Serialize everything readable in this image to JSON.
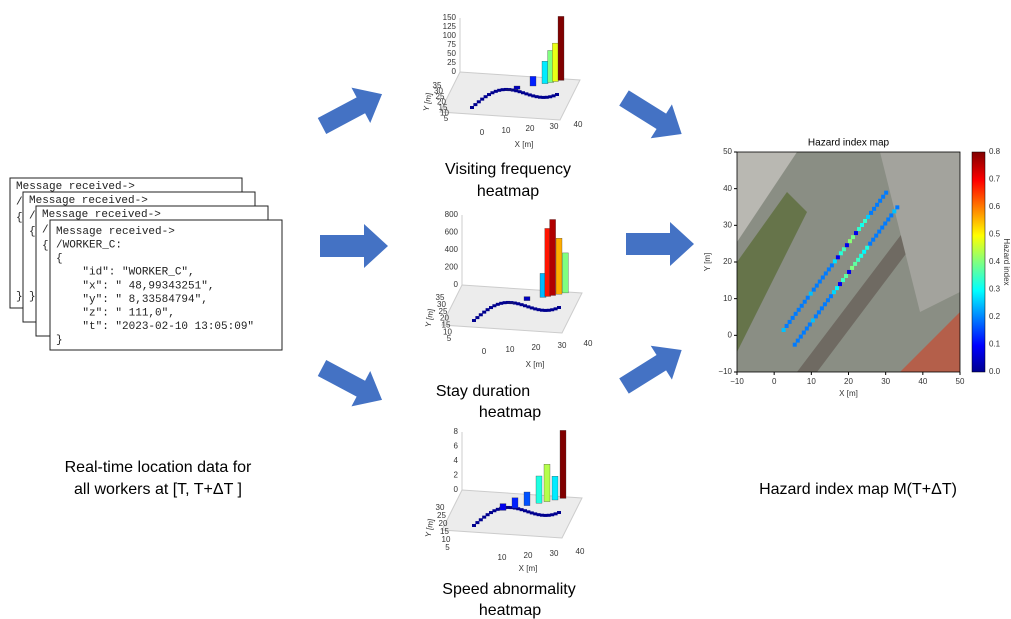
{
  "message_cards": {
    "back": [
      [
        "Message received->",
        "/",
        "{",
        "}"
      ],
      [
        "Message received->",
        "/",
        "{",
        "}"
      ],
      [
        "Message received->",
        "/",
        "{"
      ]
    ],
    "front": [
      "Message received->",
      "/WORKER_C:",
      "{",
      "    \"id\": \"WORKER_C\",",
      "    \"x\": \" 48,99343251\",",
      "    \"y\": \" 8,33584794\",",
      "    \"z\": \" 111,0\",",
      "    \"t\": \"2023-02-10 13:05:09\"",
      "}"
    ]
  },
  "heatmaps": [
    {
      "caption": [
        "Visiting frequency",
        "heatmap"
      ],
      "z_ticks": [
        "150",
        "125",
        "100",
        "75",
        "50",
        "25",
        "0"
      ],
      "y_ticks": [
        "35",
        "30",
        "25",
        "20",
        "15",
        "10",
        "5"
      ],
      "x_ticks": [
        "0",
        "10",
        "20",
        "30",
        "40"
      ],
      "x_label": "X [m]",
      "y_label": "Y [m]"
    },
    {
      "caption": [
        "Stay duration",
        "heatmap"
      ],
      "z_ticks": [
        "800",
        "600",
        "400",
        "200",
        "0"
      ],
      "y_ticks": [
        "35",
        "30",
        "25",
        "20",
        "15",
        "10",
        "5"
      ],
      "x_ticks": [
        "0",
        "10",
        "20",
        "30",
        "40"
      ],
      "x_label": "X [m]",
      "y_label": "Y [m]"
    },
    {
      "caption": [
        "Speed abnormality",
        "heatmap"
      ],
      "z_ticks": [
        "8",
        "6",
        "4",
        "2",
        "0"
      ],
      "y_ticks": [
        "30",
        "25",
        "20",
        "15",
        "10",
        "5"
      ],
      "x_ticks": [
        "10",
        "20",
        "30",
        "40"
      ],
      "x_label": "X [m]",
      "y_label": "Y [m]"
    }
  ],
  "hazard_map": {
    "title": "Hazard index map",
    "x_label": "X [m]",
    "y_label": "Y [m]",
    "x_ticks": [
      "−10",
      "0",
      "10",
      "20",
      "30",
      "40",
      "50"
    ],
    "y_ticks": [
      "50",
      "40",
      "30",
      "20",
      "10",
      "0",
      "−10"
    ],
    "colorbar_label": "Hazard index",
    "colorbar_ticks": [
      "0.8",
      "0.7",
      "0.6",
      "0.5",
      "0.4",
      "0.3",
      "0.2",
      "0.1",
      "0.0"
    ]
  },
  "captions": {
    "input": [
      "Real-time location data for",
      "all workers at [T, T+ΔT ]"
    ],
    "output": "Hazard index map M(T+ΔT)"
  }
}
